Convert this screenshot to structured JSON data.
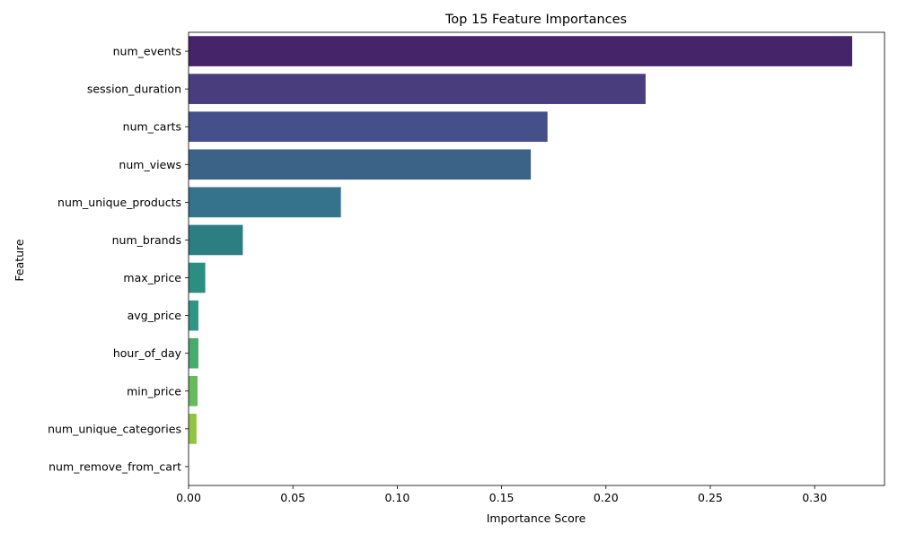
{
  "chart_data": {
    "type": "bar",
    "orientation": "horizontal",
    "title": "Top 15 Feature Importances",
    "xlabel": "Importance Score",
    "ylabel": "Feature",
    "xlim": [
      0,
      0.3335
    ],
    "grid": false,
    "legend": "none",
    "categories": [
      "num_events",
      "session_duration",
      "num_carts",
      "num_views",
      "num_unique_products",
      "num_brands",
      "max_price",
      "avg_price",
      "hour_of_day",
      "min_price",
      "num_unique_categories",
      "num_remove_from_cart"
    ],
    "values": [
      0.318,
      0.219,
      0.172,
      0.164,
      0.073,
      0.026,
      0.008,
      0.0047,
      0.0047,
      0.0043,
      0.0038,
      0.0
    ],
    "x_ticks": [
      0.0,
      0.05,
      0.1,
      0.15,
      0.2,
      0.25,
      0.3
    ],
    "x_tick_labels": [
      "0.00",
      "0.05",
      "0.10",
      "0.15",
      "0.20",
      "0.25",
      "0.30"
    ],
    "colors": [
      "#46246a",
      "#493d7d",
      "#45508a",
      "#3b6388",
      "#34738b",
      "#2b7f82",
      "#2a8f82",
      "#2f9683",
      "#47ab6e",
      "#67ba5d",
      "#92c442",
      "#bcd335"
    ]
  }
}
